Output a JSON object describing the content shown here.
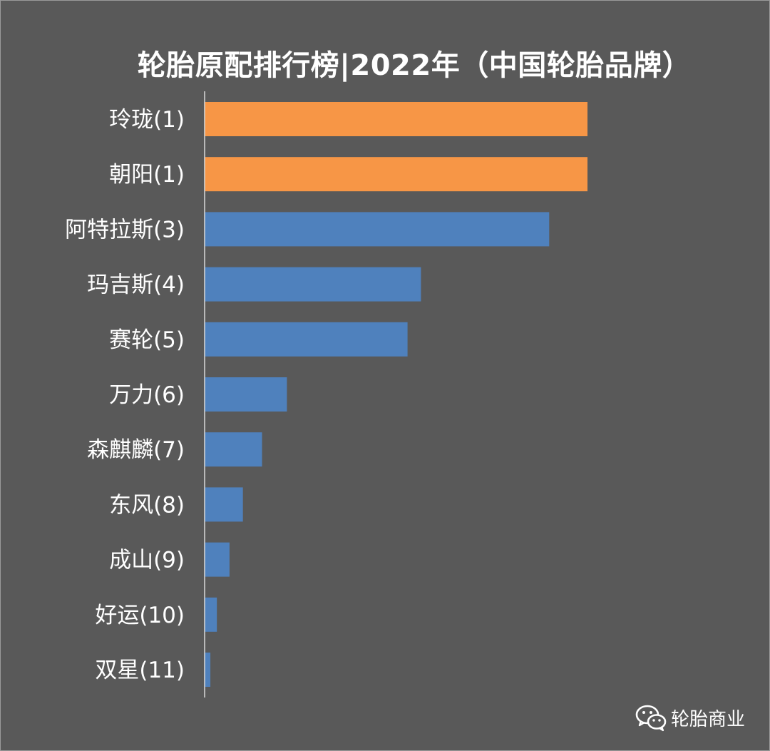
{
  "chart_data": {
    "type": "bar",
    "orientation": "horizontal",
    "title": "轮胎原配排行榜|2022年（中国轮胎品牌）",
    "categories": [
      "玲珑(1)",
      "朝阳(1)",
      "阿特拉斯(3)",
      "玛吉斯(4)",
      "赛轮(5)",
      "万力(6)",
      "森麒麟(7)",
      "东风(8)",
      "成山(9)",
      "好运(10)",
      "双星(11)"
    ],
    "values": [
      100,
      100,
      90,
      56.5,
      53,
      21.5,
      15,
      10,
      6.5,
      3.2,
      1.5
    ],
    "highlight": [
      true,
      true,
      false,
      false,
      false,
      false,
      false,
      false,
      false,
      false,
      false
    ],
    "xlim": [
      0,
      100
    ],
    "grid": false,
    "legend": "none"
  },
  "colors": {
    "background": "#595959",
    "highlight_bar": "#F79646",
    "bar": "#4F81BD",
    "text": "#FFFFFF",
    "axis": "#D9D9D9"
  },
  "watermark": {
    "icon": "wechat-icon",
    "text": "轮胎商业"
  }
}
